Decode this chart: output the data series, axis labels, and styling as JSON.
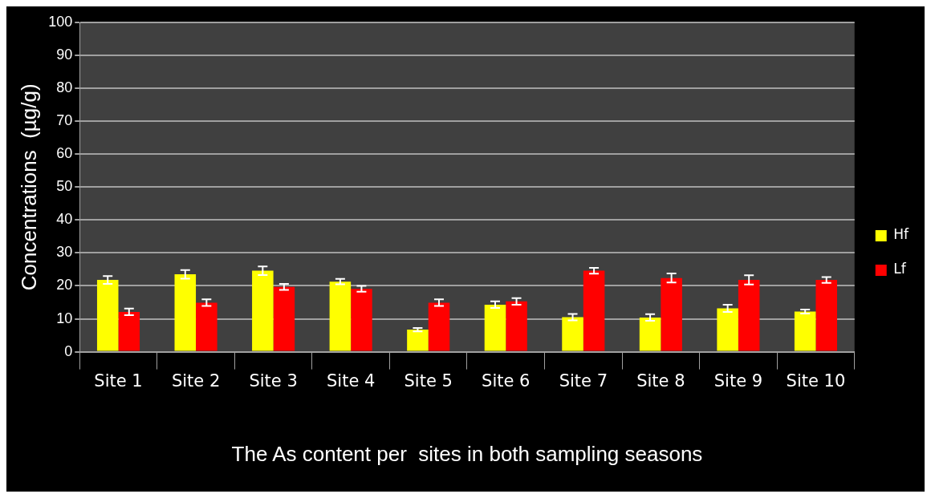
{
  "chart_data": {
    "type": "bar",
    "xlabel": "The As content per  sites in both sampling seasons",
    "ylabel": "Concentrations  (µg/g)",
    "categories": [
      "Site 1",
      "Site 2",
      "Site 3",
      "Site 4",
      "Site 5",
      "Site 6",
      "Site 7",
      "Site 8",
      "Site 9",
      "Site 10"
    ],
    "series": [
      {
        "name": "Hf",
        "color": "#ffff00",
        "values": [
          21.8,
          23.5,
          24.6,
          21.3,
          6.7,
          14.3,
          10.5,
          10.4,
          13.2,
          12.2
        ],
        "errors": [
          1.2,
          1.3,
          1.3,
          0.8,
          0.5,
          1,
          1,
          1,
          1.1,
          0.6
        ]
      },
      {
        "name": "Lf",
        "color": "#ff0000",
        "values": [
          12.1,
          14.9,
          19.7,
          19.1,
          14.9,
          15.3,
          24.6,
          22.4,
          21.8,
          21.8
        ],
        "errors": [
          1,
          1,
          0.9,
          0.9,
          1,
          1,
          0.9,
          1.4,
          1.4,
          0.9
        ]
      }
    ],
    "ylim": [
      0,
      100
    ],
    "yticks": [
      0,
      10,
      20,
      30,
      40,
      50,
      60,
      70,
      80,
      90,
      100
    ],
    "grid": "y",
    "legend": "right"
  }
}
